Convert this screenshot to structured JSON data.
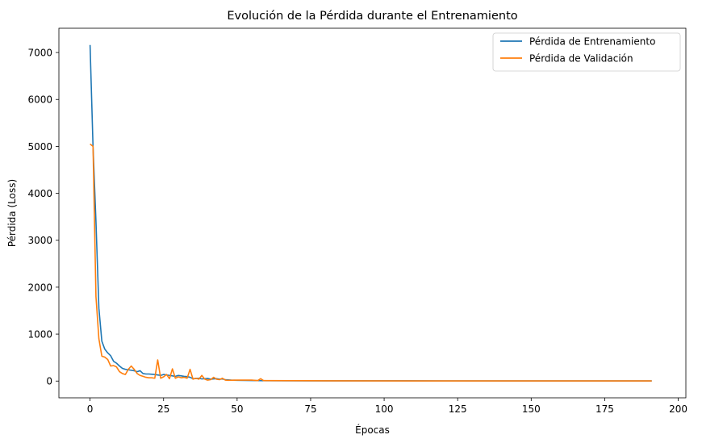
{
  "chart_data": {
    "type": "line",
    "title": "Evolución de la Pérdida durante el Entrenamiento",
    "xlabel": "Épocas",
    "ylabel": "Pérdida (Loss)",
    "xlim": [
      -10.6,
      202.6
    ],
    "ylim": [
      -357,
      7517
    ],
    "xticks": [
      0,
      25,
      50,
      75,
      100,
      125,
      150,
      175,
      200
    ],
    "yticks": [
      0,
      1000,
      2000,
      3000,
      4000,
      5000,
      6000,
      7000
    ],
    "grid": false,
    "legend_position": "top-right",
    "series": [
      {
        "name": "Pérdida de Entrenamiento",
        "color": "#1f77b4",
        "points": [
          [
            0,
            7160
          ],
          [
            1,
            5000
          ],
          [
            2,
            3400
          ],
          [
            3,
            1550
          ],
          [
            4,
            850
          ],
          [
            5,
            680
          ],
          [
            6,
            600
          ],
          [
            7,
            540
          ],
          [
            8,
            420
          ],
          [
            9,
            380
          ],
          [
            10,
            320
          ],
          [
            11,
            270
          ],
          [
            12,
            250
          ],
          [
            13,
            240
          ],
          [
            14,
            230
          ],
          [
            15,
            220
          ],
          [
            16,
            200
          ],
          [
            17,
            220
          ],
          [
            18,
            160
          ],
          [
            19,
            150
          ],
          [
            20,
            150
          ],
          [
            21,
            145
          ],
          [
            22,
            140
          ],
          [
            23,
            130
          ],
          [
            24,
            120
          ],
          [
            25,
            140
          ],
          [
            26,
            130
          ],
          [
            27,
            120
          ],
          [
            28,
            110
          ],
          [
            29,
            100
          ],
          [
            30,
            120
          ],
          [
            31,
            110
          ],
          [
            32,
            100
          ],
          [
            33,
            95
          ],
          [
            34,
            80
          ],
          [
            35,
            50
          ],
          [
            36,
            55
          ],
          [
            37,
            60
          ],
          [
            38,
            45
          ],
          [
            39,
            50
          ],
          [
            40,
            55
          ],
          [
            41,
            40
          ],
          [
            42,
            45
          ],
          [
            43,
            50
          ],
          [
            44,
            40
          ],
          [
            45,
            45
          ],
          [
            46,
            30
          ],
          [
            47,
            25
          ],
          [
            48,
            20
          ],
          [
            50,
            15
          ],
          [
            55,
            12
          ],
          [
            60,
            8
          ],
          [
            80,
            5
          ],
          [
            120,
            4
          ],
          [
            160,
            3
          ],
          [
            191,
            3
          ]
        ]
      },
      {
        "name": "Pérdida de Validación",
        "color": "#ff7f0e",
        "points": [
          [
            0,
            5050
          ],
          [
            1,
            5000
          ],
          [
            2,
            1800
          ],
          [
            3,
            900
          ],
          [
            4,
            530
          ],
          [
            5,
            510
          ],
          [
            6,
            460
          ],
          [
            7,
            320
          ],
          [
            8,
            330
          ],
          [
            9,
            300
          ],
          [
            10,
            200
          ],
          [
            11,
            160
          ],
          [
            12,
            140
          ],
          [
            13,
            250
          ],
          [
            14,
            320
          ],
          [
            15,
            250
          ],
          [
            16,
            160
          ],
          [
            17,
            120
          ],
          [
            18,
            100
          ],
          [
            19,
            80
          ],
          [
            20,
            70
          ],
          [
            21,
            70
          ],
          [
            22,
            60
          ],
          [
            23,
            450
          ],
          [
            24,
            60
          ],
          [
            25,
            90
          ],
          [
            26,
            140
          ],
          [
            27,
            50
          ],
          [
            28,
            260
          ],
          [
            29,
            60
          ],
          [
            30,
            90
          ],
          [
            31,
            70
          ],
          [
            32,
            80
          ],
          [
            33,
            60
          ],
          [
            34,
            250
          ],
          [
            35,
            40
          ],
          [
            36,
            60
          ],
          [
            37,
            40
          ],
          [
            38,
            120
          ],
          [
            39,
            40
          ],
          [
            40,
            20
          ],
          [
            41,
            30
          ],
          [
            42,
            80
          ],
          [
            43,
            40
          ],
          [
            44,
            30
          ],
          [
            45,
            60
          ],
          [
            46,
            20
          ],
          [
            47,
            15
          ],
          [
            50,
            20
          ],
          [
            55,
            20
          ],
          [
            57,
            10
          ],
          [
            58,
            50
          ],
          [
            59,
            10
          ],
          [
            60,
            10
          ],
          [
            80,
            5
          ],
          [
            120,
            3
          ],
          [
            160,
            3
          ],
          [
            191,
            3
          ]
        ]
      }
    ]
  }
}
